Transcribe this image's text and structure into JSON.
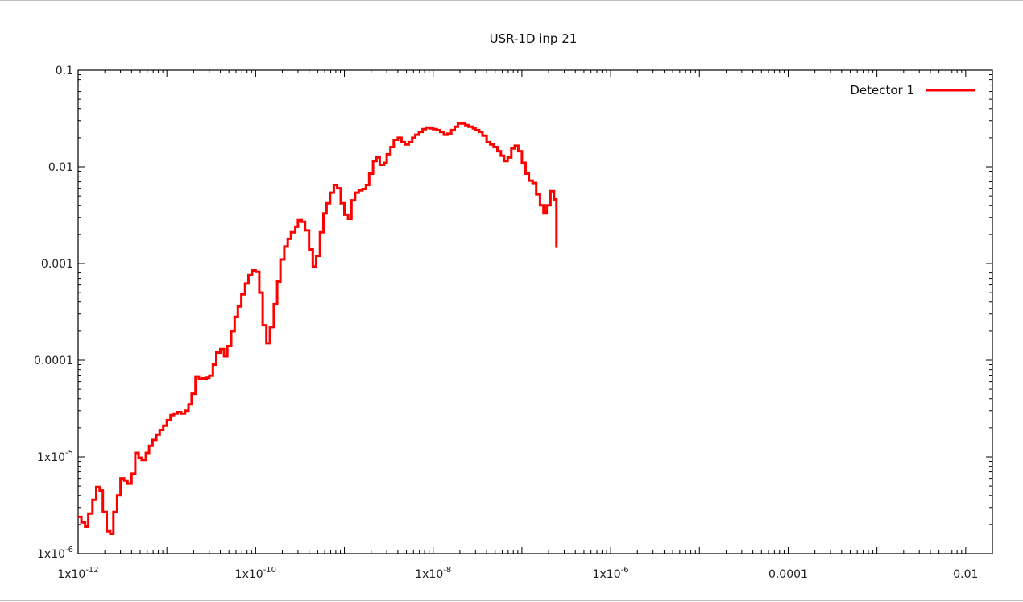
{
  "chart_data": {
    "type": "line",
    "title": "USR-1D inp 21",
    "xlabel": "",
    "ylabel": "",
    "xscale": "log",
    "yscale": "log",
    "xlim": [
      1e-12,
      0.02
    ],
    "ylim": [
      1e-06,
      0.1
    ],
    "grid": false,
    "legend_position": "top-right",
    "x_ticks": [
      {
        "value": 1e-12,
        "mant": "1x10",
        "exp": "-12"
      },
      {
        "value": 1e-10,
        "mant": "1x10",
        "exp": "-10"
      },
      {
        "value": 1e-08,
        "mant": "1x10",
        "exp": "-8"
      },
      {
        "value": 1e-06,
        "mant": "1x10",
        "exp": "-6"
      },
      {
        "value": 0.0001,
        "mant": "0.0001",
        "exp": ""
      },
      {
        "value": 0.01,
        "mant": "0.01",
        "exp": ""
      }
    ],
    "y_ticks": [
      {
        "value": 1e-06,
        "mant": "1x10",
        "exp": "-6"
      },
      {
        "value": 1e-05,
        "mant": "1x10",
        "exp": "-5"
      },
      {
        "value": 0.0001,
        "mant": "0.0001",
        "exp": ""
      },
      {
        "value": 0.001,
        "mant": "0.001",
        "exp": ""
      },
      {
        "value": 0.01,
        "mant": "0.01",
        "exp": ""
      },
      {
        "value": 0.1,
        "mant": "0.1",
        "exp": ""
      }
    ],
    "series": [
      {
        "name": "Detector 1",
        "color": "#ff0000",
        "style": "histogram-step",
        "x_edges": [
          1e-12,
          2.1e-11,
          4.5e-11,
          1.5e-10,
          4.6e-10,
          1.5e-08,
          2e-07,
          6.2e-07,
          2.3e-05
        ],
        "points": [
          [
            1e-12,
            2.4e-06
          ],
          [
            1.09e-12,
            2.1e-06
          ],
          [
            1.2e-12,
            1.9e-06
          ],
          [
            1.3e-12,
            2.6e-06
          ],
          [
            1.45e-12,
            3.6e-06
          ],
          [
            1.6e-12,
            4.9e-06
          ],
          [
            1.75e-12,
            4.5e-06
          ],
          [
            1.9e-12,
            2.7e-06
          ],
          [
            2.1e-12,
            1.7e-06
          ],
          [
            2.3e-12,
            1.6e-06
          ],
          [
            2.5e-12,
            2.7e-06
          ],
          [
            2.75e-12,
            4e-06
          ],
          [
            3e-12,
            6e-06
          ],
          [
            3.3e-12,
            5.7e-06
          ],
          [
            3.6e-12,
            5.3e-06
          ],
          [
            4e-12,
            6.7e-06
          ],
          [
            4.4e-12,
            1.1e-05
          ],
          [
            4.8e-12,
            9.8e-06
          ],
          [
            5.2e-12,
            9.3e-06
          ],
          [
            5.8e-12,
            1.1e-05
          ],
          [
            6.3e-12,
            1.3e-05
          ],
          [
            6.9e-12,
            1.5e-05
          ],
          [
            7.6e-12,
            1.7e-05
          ],
          [
            8.3e-12,
            1.9e-05
          ],
          [
            9.1e-12,
            2.1e-05
          ],
          [
            1e-11,
            2.4e-05
          ],
          [
            1.1e-11,
            2.7e-05
          ],
          [
            1.2e-11,
            2.8e-05
          ],
          [
            1.32e-11,
            2.9e-05
          ],
          [
            1.45e-11,
            2.8e-05
          ],
          [
            1.6e-11,
            3e-05
          ],
          [
            1.75e-11,
            3.5e-05
          ],
          [
            1.9e-11,
            4.5e-05
          ],
          [
            2.1e-11,
            6.8e-05
          ],
          [
            2.3e-11,
            6.4e-05
          ],
          [
            2.5e-11,
            6.5e-05
          ],
          [
            2.8e-11,
            6.6e-05
          ],
          [
            3e-11,
            6.9e-05
          ],
          [
            3.3e-11,
            9e-05
          ],
          [
            3.6e-11,
            0.00012
          ],
          [
            4e-11,
            0.00013
          ],
          [
            4.4e-11,
            0.00011
          ],
          [
            4.8e-11,
            0.00014
          ],
          [
            5.3e-11,
            0.0002
          ],
          [
            5.8e-11,
            0.00028
          ],
          [
            6.3e-11,
            0.00036
          ],
          [
            6.9e-11,
            0.00048
          ],
          [
            7.6e-11,
            0.00062
          ],
          [
            8.3e-11,
            0.00076
          ],
          [
            9.1e-11,
            0.00085
          ],
          [
            1e-10,
            0.00082
          ],
          [
            1.1e-10,
            0.0005
          ],
          [
            1.2e-10,
            0.00023
          ],
          [
            1.32e-10,
            0.00015
          ],
          [
            1.45e-10,
            0.00022
          ],
          [
            1.6e-10,
            0.00038
          ],
          [
            1.75e-10,
            0.00065
          ],
          [
            1.9e-10,
            0.0011
          ],
          [
            2.1e-10,
            0.0015
          ],
          [
            2.3e-10,
            0.0018
          ],
          [
            2.5e-10,
            0.0021
          ],
          [
            2.8e-10,
            0.0024
          ],
          [
            3e-10,
            0.0028
          ],
          [
            3.3e-10,
            0.0027
          ],
          [
            3.6e-10,
            0.0022
          ],
          [
            4e-10,
            0.0014
          ],
          [
            4.4e-10,
            0.00093
          ],
          [
            4.8e-10,
            0.0012
          ],
          [
            5.3e-10,
            0.0021
          ],
          [
            5.8e-10,
            0.0033
          ],
          [
            6.3e-10,
            0.0042
          ],
          [
            6.9e-10,
            0.0054
          ],
          [
            7.6e-10,
            0.0065
          ],
          [
            8.3e-10,
            0.006
          ],
          [
            9.1e-10,
            0.0042
          ],
          [
            1e-09,
            0.0032
          ],
          [
            1.1e-09,
            0.0029
          ],
          [
            1.2e-09,
            0.0045
          ],
          [
            1.32e-09,
            0.0054
          ],
          [
            1.45e-09,
            0.0057
          ],
          [
            1.6e-09,
            0.0059
          ],
          [
            1.75e-09,
            0.0065
          ],
          [
            1.9e-09,
            0.0085
          ],
          [
            2.1e-09,
            0.0115
          ],
          [
            2.3e-09,
            0.0125
          ],
          [
            2.5e-09,
            0.0105
          ],
          [
            2.8e-09,
            0.011
          ],
          [
            3e-09,
            0.0135
          ],
          [
            3.3e-09,
            0.016
          ],
          [
            3.6e-09,
            0.019
          ],
          [
            4e-09,
            0.02
          ],
          [
            4.4e-09,
            0.018
          ],
          [
            4.8e-09,
            0.017
          ],
          [
            5.3e-09,
            0.018
          ],
          [
            5.8e-09,
            0.02
          ],
          [
            6.3e-09,
            0.0215
          ],
          [
            6.9e-09,
            0.023
          ],
          [
            7.6e-09,
            0.0245
          ],
          [
            8.3e-09,
            0.0255
          ],
          [
            9.1e-09,
            0.025
          ],
          [
            1e-08,
            0.0245
          ],
          [
            1.1e-08,
            0.024
          ],
          [
            1.2e-08,
            0.023
          ],
          [
            1.32e-08,
            0.0215
          ],
          [
            1.45e-08,
            0.022
          ],
          [
            1.6e-08,
            0.024
          ],
          [
            1.75e-08,
            0.026
          ],
          [
            1.9e-08,
            0.028
          ],
          [
            2.1e-08,
            0.028
          ],
          [
            2.3e-08,
            0.027
          ],
          [
            2.5e-08,
            0.026
          ],
          [
            2.8e-08,
            0.025
          ],
          [
            3e-08,
            0.024
          ],
          [
            3.3e-08,
            0.023
          ],
          [
            3.6e-08,
            0.021
          ],
          [
            4e-08,
            0.018
          ],
          [
            4.4e-08,
            0.017
          ],
          [
            4.8e-08,
            0.016
          ],
          [
            5.3e-08,
            0.0145
          ],
          [
            5.8e-08,
            0.013
          ],
          [
            6.3e-08,
            0.0115
          ],
          [
            6.9e-08,
            0.0125
          ],
          [
            7.6e-08,
            0.0155
          ],
          [
            8.3e-08,
            0.0165
          ],
          [
            9.1e-08,
            0.0145
          ],
          [
            1e-07,
            0.011
          ],
          [
            1.1e-07,
            0.0085
          ],
          [
            1.2e-07,
            0.0072
          ],
          [
            1.32e-07,
            0.0068
          ],
          [
            1.45e-07,
            0.0052
          ],
          [
            1.6e-07,
            0.004
          ],
          [
            1.75e-07,
            0.0033
          ],
          [
            1.9e-07,
            0.004
          ],
          [
            2.1e-07,
            0.0056
          ],
          [
            2.3e-07,
            0.0046
          ],
          [
            2.45e-07,
            0.00145
          ]
        ]
      }
    ]
  }
}
